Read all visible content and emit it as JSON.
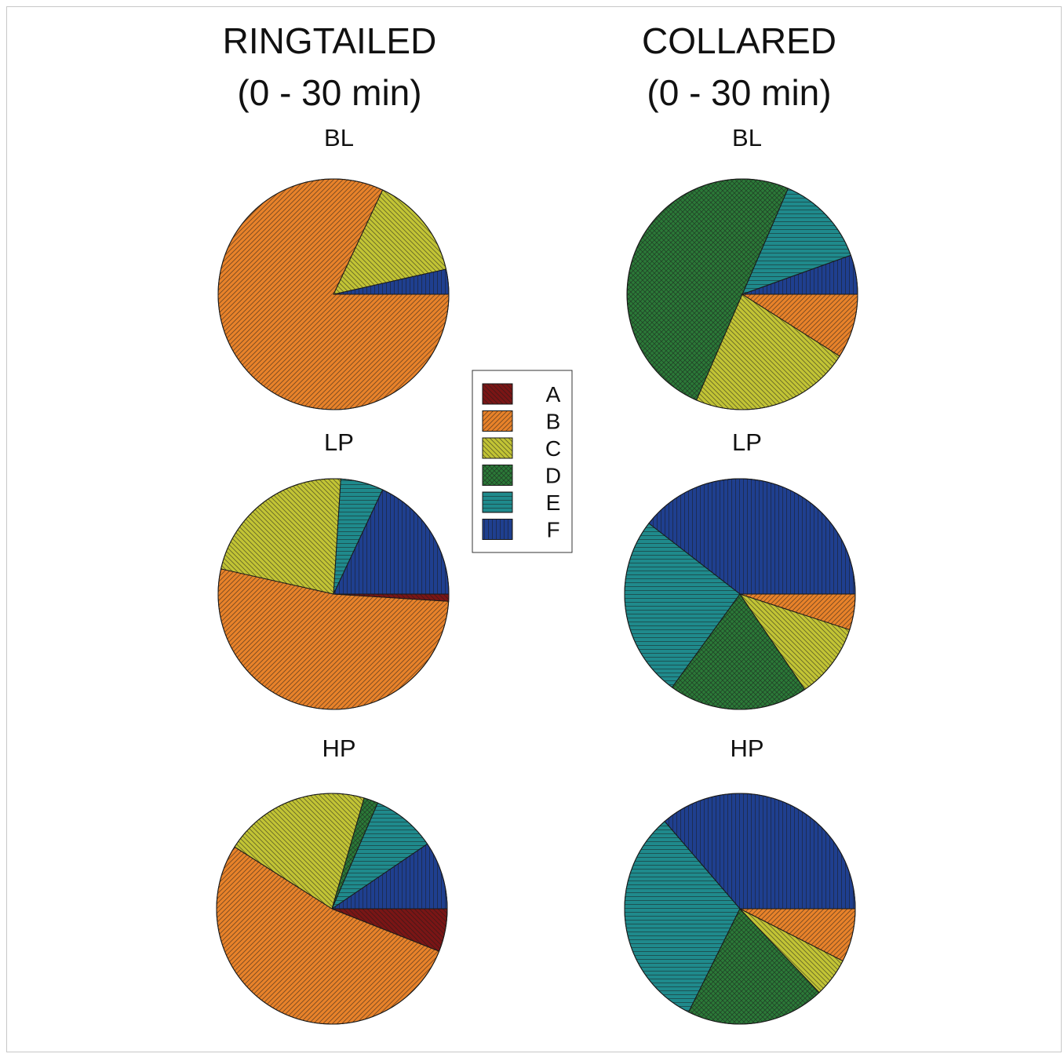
{
  "chart_data": {
    "type": "pie",
    "slice_order": "counterclockwise from 3 o'clock, starting with F",
    "legend": {
      "placement": "center",
      "entries": [
        {
          "key": "A",
          "label": "A",
          "color": "#7a1515",
          "pattern": "diag-back"
        },
        {
          "key": "B",
          "label": "B",
          "color": "#e8822a",
          "pattern": "diag-fwd"
        },
        {
          "key": "C",
          "label": "C",
          "color": "#c2c435",
          "pattern": "diag-back"
        },
        {
          "key": "D",
          "label": "D",
          "color": "#2b7a38",
          "pattern": "crosshatch"
        },
        {
          "key": "E",
          "label": "E",
          "color": "#1f8a8c",
          "pattern": "horizontal"
        },
        {
          "key": "F",
          "label": "F",
          "color": "#1f3f8f",
          "pattern": "vertical"
        }
      ]
    },
    "columns": [
      {
        "title_line1": "RINGTAILED",
        "title_line2": "(0 - 30 min)",
        "panels": [
          {
            "label": "BL",
            "values": {
              "F": 3.5,
              "E": 0,
              "D": 0,
              "C": 14.5,
              "B": 82,
              "A": 0
            }
          },
          {
            "label": "LP",
            "values": {
              "F": 18,
              "E": 6,
              "D": 0,
              "C": 22.5,
              "B": 52.5,
              "A": 1
            }
          },
          {
            "label": "HP",
            "values": {
              "F": 9.5,
              "E": 9,
              "D": 2,
              "C": 20.5,
              "B": 53,
              "A": 6
            }
          }
        ]
      },
      {
        "title_line1": "COLLARED",
        "title_line2": "(0 - 30 min)",
        "panels": [
          {
            "label": "BL",
            "values": {
              "F": 5.5,
              "E": 13,
              "D": 50,
              "C": 22.5,
              "B": 9,
              "A": 0
            }
          },
          {
            "label": "LP",
            "values": {
              "F": 39.5,
              "E": 25.5,
              "D": 19.5,
              "C": 10.5,
              "B": 5,
              "A": 0
            }
          },
          {
            "label": "HP",
            "values": {
              "F": 36.5,
              "E": 31.5,
              "D": 19.5,
              "C": 5.5,
              "B": 7.5,
              "A": 0
            }
          }
        ]
      }
    ]
  }
}
